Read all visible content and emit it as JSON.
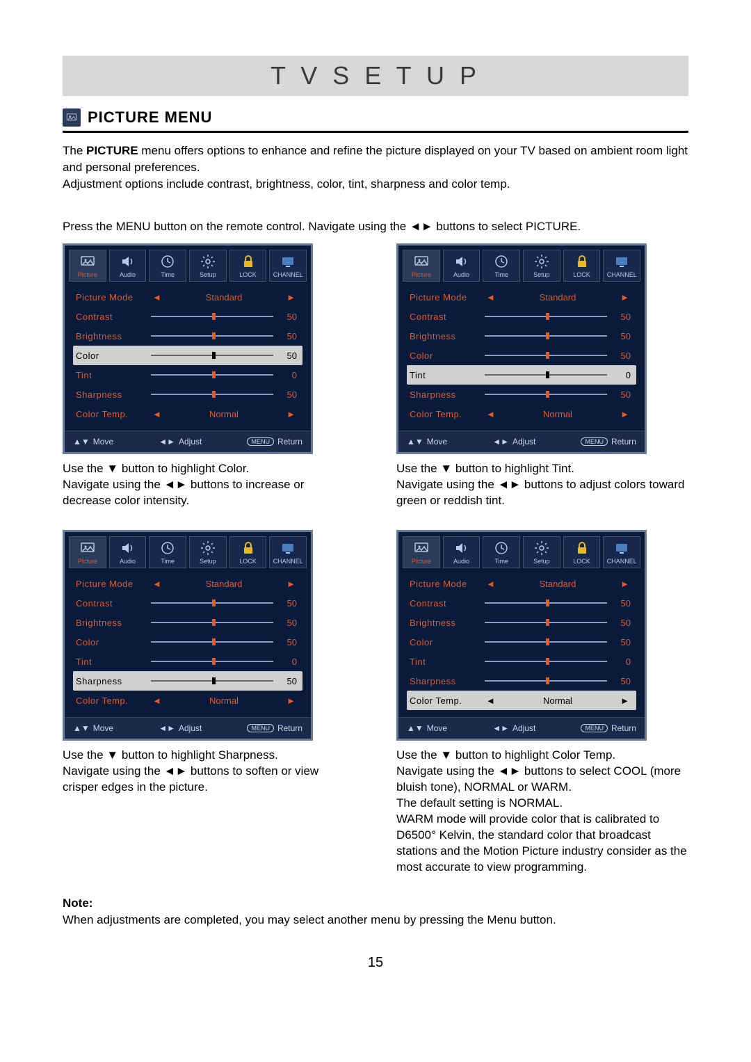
{
  "page_title": "T V S E T U P",
  "section_title": "PICTURE MENU",
  "intro_html": "The <span class=\"bold\">PICTURE</span> menu offers options to enhance and refine the picture displayed on your TV based on ambient room light and personal preferences.<br>Adjustment options include contrast, brightness, color, tint, sharpness and color temp.",
  "instruction_line": "Press the MENU button on the remote control. Navigate using the ◄► buttons to select PICTURE.",
  "osd_tabs": [
    {
      "label": "Picture",
      "icon": "picture"
    },
    {
      "label": "Audio",
      "icon": "audio"
    },
    {
      "label": "Time",
      "icon": "clock"
    },
    {
      "label": "Setup",
      "icon": "gear"
    },
    {
      "label": "LOCK",
      "icon": "lock"
    },
    {
      "label": "CHANNEL",
      "icon": "tv"
    }
  ],
  "osd_footer": {
    "move": "Move",
    "adjust": "Adjust",
    "return": "Return",
    "menu_label": "MENU"
  },
  "osd_rows_template": [
    {
      "key": "pm",
      "label": "Picture Mode",
      "type": "spinner",
      "value": "Standard"
    },
    {
      "key": "co",
      "label": "Contrast",
      "type": "slider",
      "value": 50
    },
    {
      "key": "br",
      "label": "Brightness",
      "type": "slider",
      "value": 50
    },
    {
      "key": "cl",
      "label": "Color",
      "type": "slider",
      "value": 50
    },
    {
      "key": "ti",
      "label": "Tint",
      "type": "slider",
      "value": 0,
      "pos": 50
    },
    {
      "key": "sh",
      "label": "Sharpness",
      "type": "slider",
      "value": 50
    },
    {
      "key": "ct",
      "label": "Color Temp.",
      "type": "spinner",
      "value": "Normal"
    }
  ],
  "screenshots": [
    {
      "selected_key": "cl",
      "caption": "Use the ▼ button to highlight Color.<br>Navigate using the ◄► buttons to increase or decrease color intensity."
    },
    {
      "selected_key": "ti",
      "caption": "Use the ▼ button to highlight Tint.<br>Navigate using the ◄► buttons to adjust colors toward green or reddish tint."
    },
    {
      "selected_key": "sh",
      "caption": "Use the ▼ button to highlight Sharpness.<br>Navigate using the ◄► buttons to soften or view crisper edges in the picture."
    },
    {
      "selected_key": "ct",
      "caption": "Use the ▼ button to highlight Color Temp.<br>Navigate using the ◄► buttons to select COOL (more bluish tone), NORMAL or WARM.<br>The default setting is NORMAL.<br>WARM mode will provide color that is calibrated to D6500° Kelvin, the standard color that broadcast stations and the Motion Picture industry consider as the most accurate to view programming."
    }
  ],
  "note_title": "Note:",
  "note_text": "When adjustments are completed, you may select another menu by pressing the Menu button.",
  "page_number": "15",
  "colors": {
    "osd_bg": "#0a1a3a",
    "osd_text": "#e85820",
    "osd_selected_bg": "#d0d0d0",
    "osd_border": "#6a7a9a",
    "title_bg": "#d8d8d8"
  }
}
